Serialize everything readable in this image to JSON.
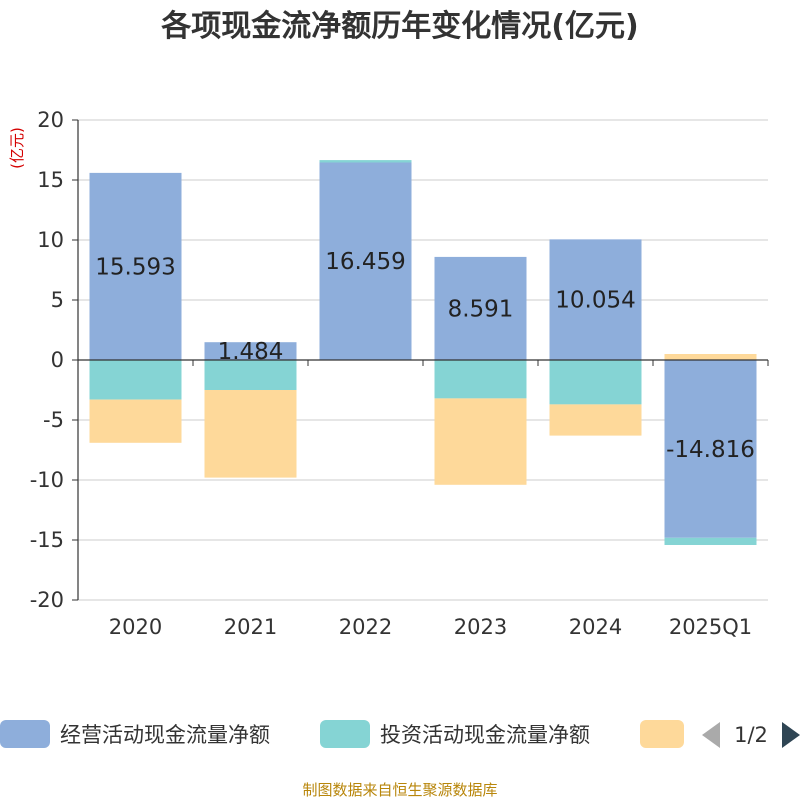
{
  "chart_data": {
    "type": "bar",
    "stacked": true,
    "title": "各项现金流净额历年变化情况(亿元)",
    "ylabel": "(亿元)",
    "categories": [
      "2020",
      "2021",
      "2022",
      "2023",
      "2024",
      "2025Q1"
    ],
    "ylim": [
      -20,
      20
    ],
    "yticks": [
      20,
      15,
      10,
      5,
      0,
      -5,
      -10,
      -15,
      -20
    ],
    "ytick_labels": [
      "20",
      "15",
      "10",
      "5",
      "0",
      "-5",
      "-10",
      "-15",
      "-20"
    ],
    "grid": true,
    "series": [
      {
        "name": "经营活动现金流量净额",
        "color": "#8eaedb",
        "values": [
          15.593,
          1.484,
          16.459,
          8.591,
          10.054,
          -14.816
        ],
        "labels": [
          "15.593",
          "1.484",
          "16.459",
          "8.591",
          "10.054",
          "-14.816"
        ]
      },
      {
        "name": "投资活动现金流量净额",
        "color": "#85d4d4",
        "values": [
          -3.3,
          -2.5,
          0.2,
          -3.2,
          -3.7,
          -0.6
        ]
      },
      {
        "name": "",
        "color": "#fed99a",
        "values": [
          -3.6,
          -7.3,
          0.0,
          -7.2,
          -2.6,
          0.5
        ]
      }
    ]
  },
  "legend": {
    "page": "1/2"
  },
  "source": "制图数据来自恒生聚源数据库"
}
